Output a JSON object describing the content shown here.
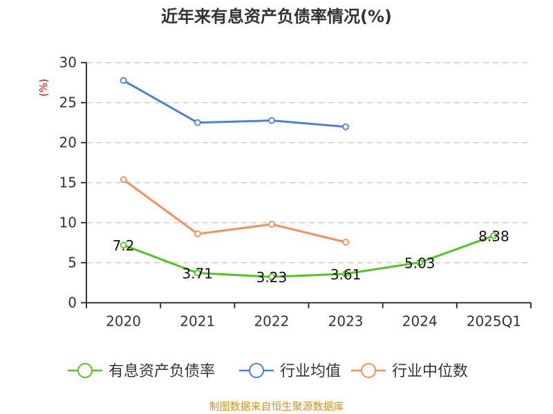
{
  "chart_data": {
    "type": "line",
    "title": "近年来有息资产负债率情况(%)",
    "ylabel": "(%)",
    "categories": [
      "2020",
      "2021",
      "2022",
      "2023",
      "2024",
      "2025Q1"
    ],
    "ylim": [
      0,
      30
    ],
    "yticks": [
      0,
      5,
      10,
      15,
      20,
      25,
      30
    ],
    "grid": true,
    "legend_position": "bottom",
    "series": [
      {
        "name": "有息资产负债率",
        "color": "#52c41a",
        "values": [
          7.2,
          3.71,
          3.23,
          3.61,
          5.03,
          8.38
        ],
        "labels": [
          "7.2",
          "3.71",
          "3.23",
          "3.61",
          "5.03",
          "8.38"
        ]
      },
      {
        "name": "行业均值",
        "color": "#4a7fe0",
        "values": [
          27.76,
          22.5,
          22.76,
          21.98,
          null,
          null
        ]
      },
      {
        "name": "行业中位数",
        "color": "#ff8c55",
        "values": [
          15.38,
          8.6,
          9.8,
          7.56,
          null,
          null
        ]
      }
    ],
    "source": "制图数据来自恒生聚源数据库"
  }
}
